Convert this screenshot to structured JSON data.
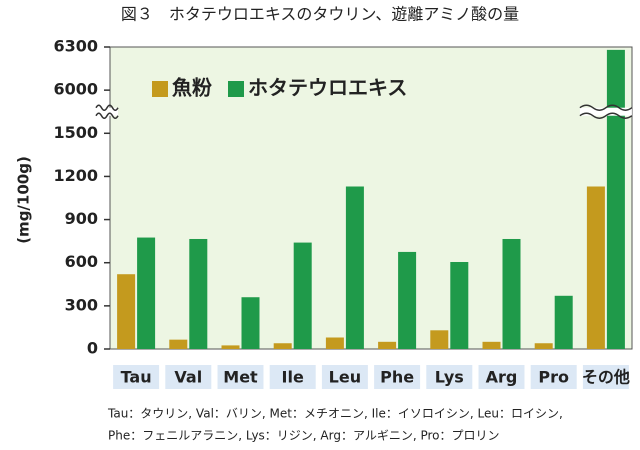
{
  "chart_data": {
    "type": "bar",
    "title": "図３　ホタテウロエキスのタウリン、遊離アミノ酸の量",
    "y_label": "(mg/100g)",
    "categories": [
      "Tau",
      "Val",
      "Met",
      "Ile",
      "Leu",
      "Phe",
      "Lys",
      "Arg",
      "Pro",
      "その他"
    ],
    "series": [
      {
        "name": "魚粉",
        "color": "#c49a1e",
        "values": [
          520,
          65,
          25,
          40,
          80,
          50,
          130,
          50,
          40,
          1130
        ]
      },
      {
        "name": "ホタテウロエキス",
        "color": "#1f9a4a",
        "values": [
          775,
          765,
          360,
          740,
          1130,
          675,
          605,
          765,
          370,
          6280
        ]
      }
    ],
    "ylim": [
      0,
      6300
    ],
    "yticks": [
      0,
      300,
      600,
      900,
      1200,
      1500,
      6000,
      6300
    ],
    "axis_break": [
      1500,
      6000
    ],
    "legend": "upper left",
    "notes": [
      "Tau：タウリン,  Val：バリン,  Met：メチオニン,  Ile：イソロイシン,  Leu：ロイシン,",
      "Phe：フェニルアラニン,  Lys：リジン,  Arg：アルギニン,  Pro：プロリン"
    ]
  }
}
